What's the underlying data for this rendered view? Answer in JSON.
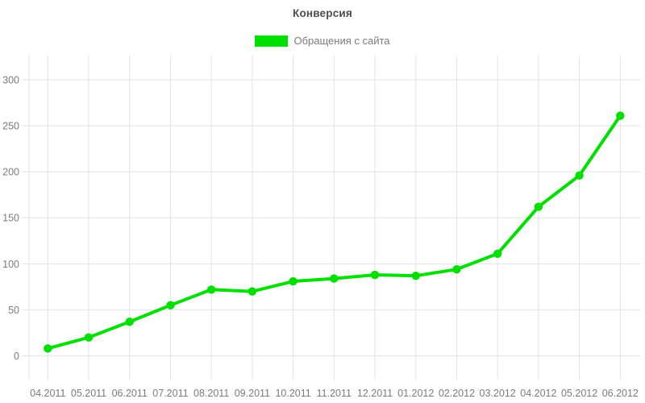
{
  "title": "Конверсия",
  "legend": {
    "label": "Обращения с сайта",
    "swatch_color": "#00e000"
  },
  "chart_data": {
    "type": "line",
    "title": "Конверсия",
    "categories": [
      "04.2011",
      "05.2011",
      "06.2011",
      "07.2011",
      "08.2011",
      "09.2011",
      "10.2011",
      "11.2011",
      "12.2011",
      "01.2012",
      "02.2012",
      "03.2012",
      "04.2012",
      "05.2012",
      "06.2012"
    ],
    "series": [
      {
        "name": "Обращения с сайта",
        "color": "#00e000",
        "values": [
          8,
          20,
          37,
          55,
          72,
          70,
          81,
          84,
          88,
          87,
          94,
          111,
          162,
          196,
          261
        ]
      }
    ],
    "xlabel": "",
    "ylabel": "",
    "yticks": [
      0,
      50,
      100,
      150,
      200,
      250,
      300
    ],
    "ylim": [
      0,
      325
    ],
    "grid": true,
    "legend_position": "top"
  },
  "colors": {
    "line": "#00e000",
    "grid": "#e2e2e2",
    "axis_label": "#7b7b7b",
    "title": "#4d4d4d",
    "background": "#ffffff"
  }
}
